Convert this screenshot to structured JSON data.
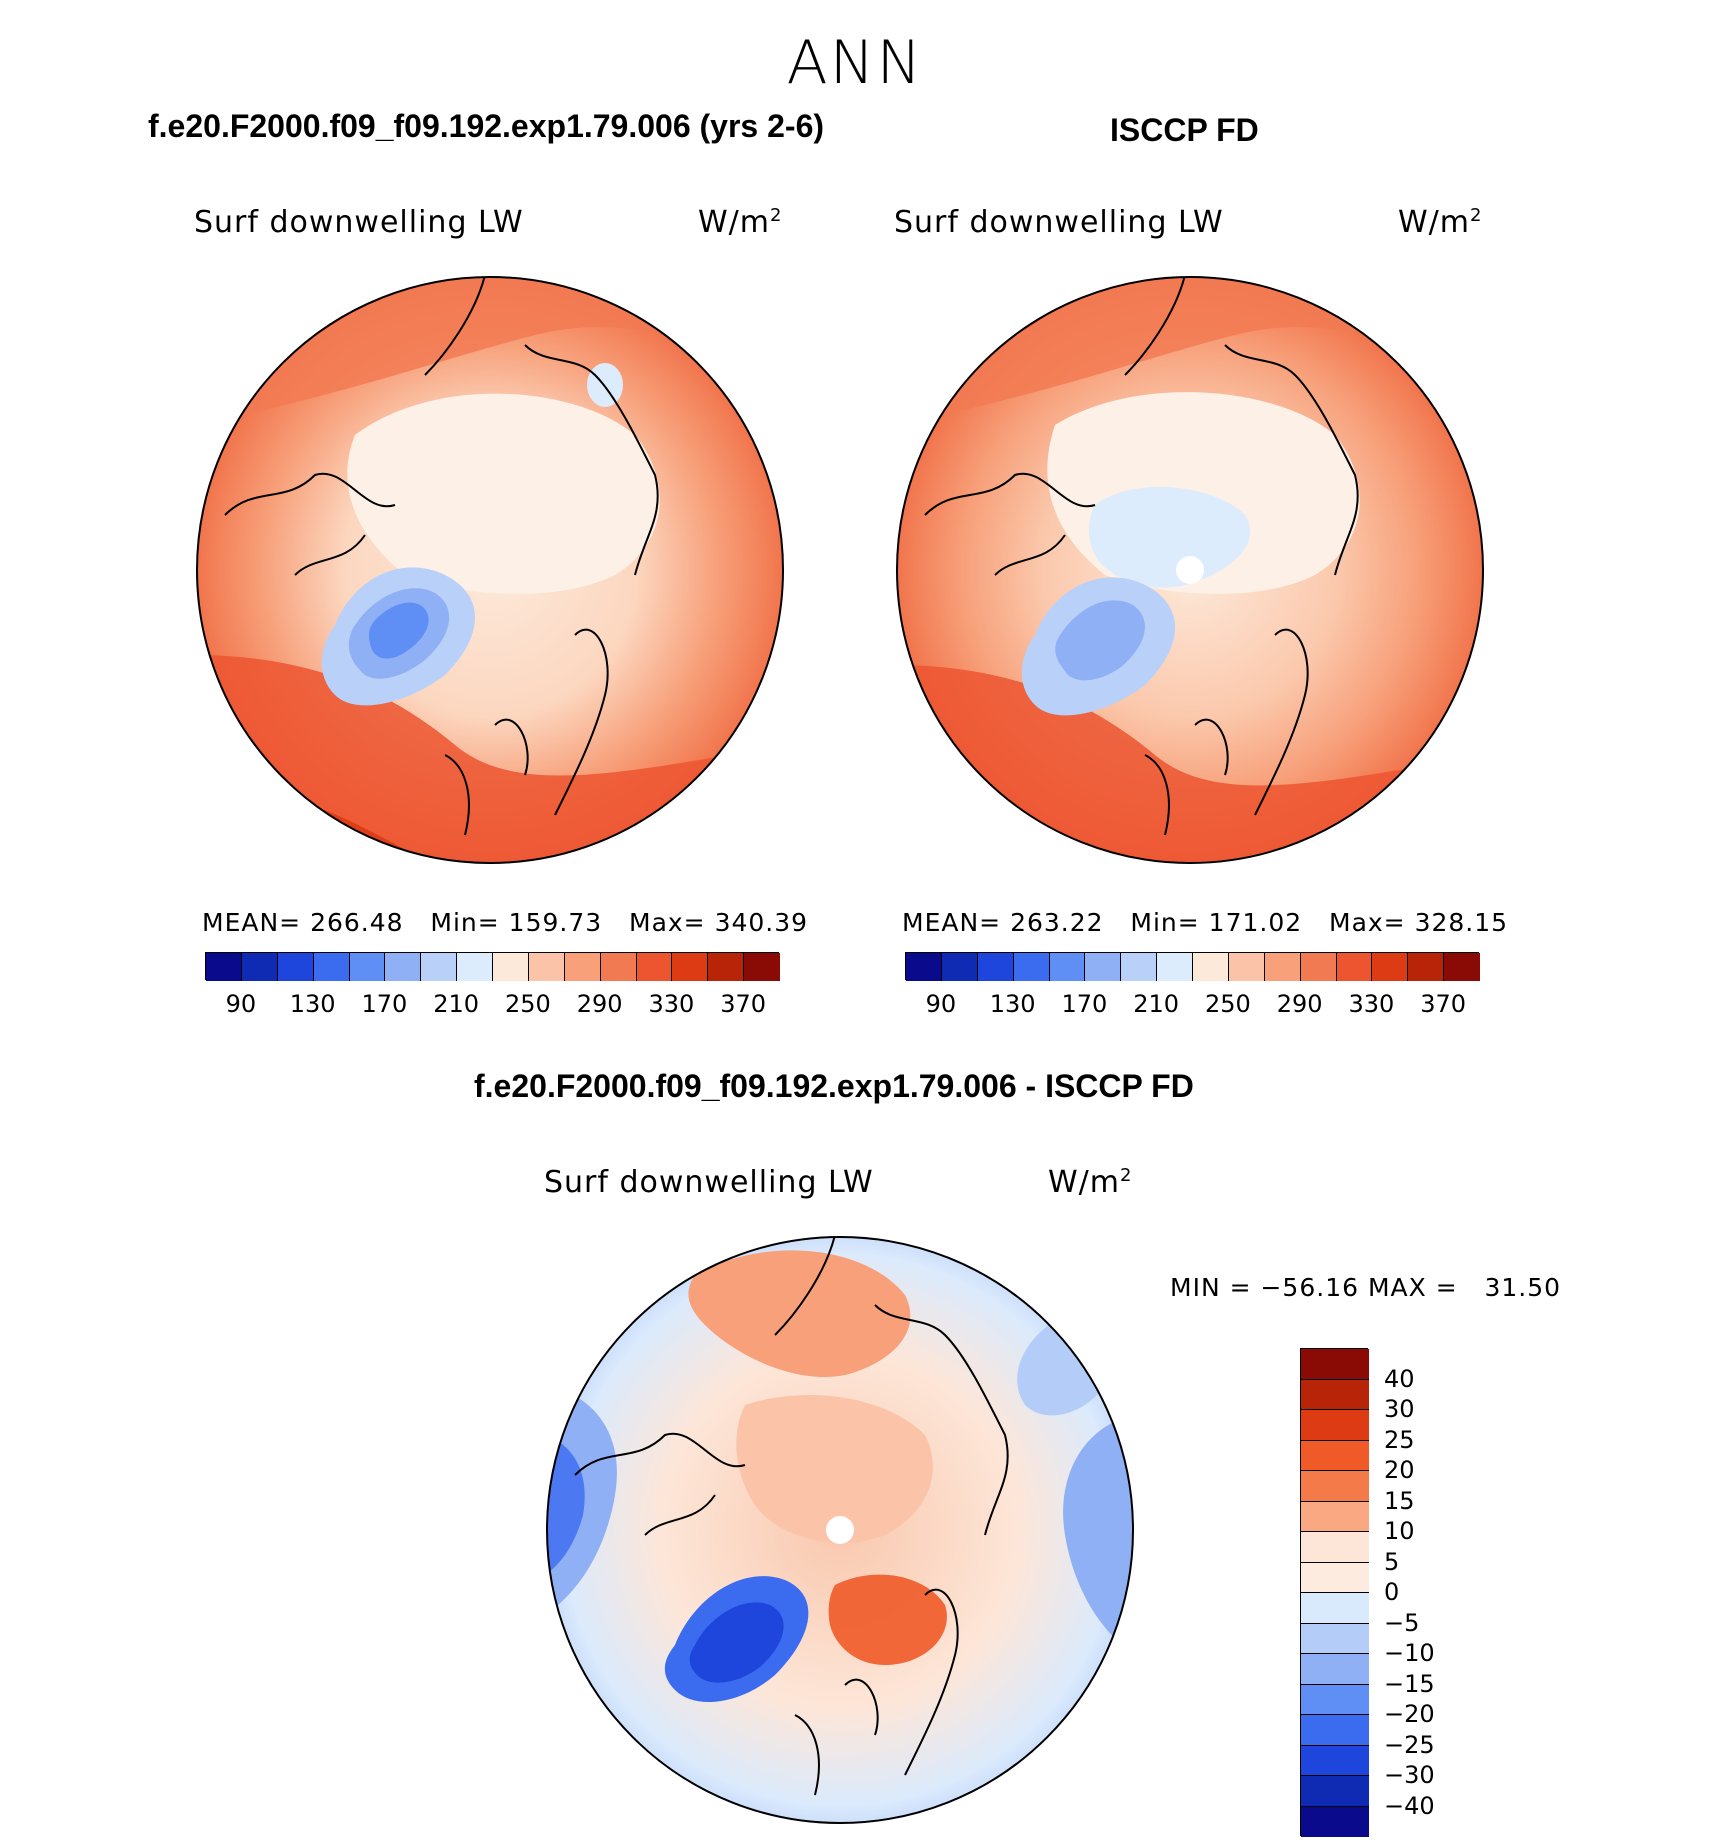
{
  "season": "ANN",
  "panels": {
    "model": {
      "title": "f.e20.F2000.f09_f09.192.exp1.79.006 (yrs 2-6)",
      "variable": "Surf downwelling LW",
      "units": "W/m",
      "units_exp": "2",
      "stats": {
        "mean_label": "MEAN=",
        "mean": "266.48",
        "min_label": "Min=",
        "min": "159.73",
        "max_label": "Max=",
        "max": "340.39"
      }
    },
    "obs": {
      "title": "ISCCP FD",
      "variable": "Surf downwelling LW",
      "units": "W/m",
      "units_exp": "2",
      "stats": {
        "mean_label": "MEAN=",
        "mean": "263.22",
        "min_label": "Min=",
        "min": "171.02",
        "max_label": "Max=",
        "max": "328.15"
      }
    },
    "diff": {
      "title": "f.e20.F2000.f09_f09.192.exp1.79.006 - ISCCP FD",
      "variable": "Surf downwelling LW",
      "units": "W/m",
      "units_exp": "2",
      "minmax": "MIN = −56.16 MAX =   31.50"
    }
  },
  "chart_data": [
    {
      "type": "heatmap",
      "title": "f.e20.F2000.f09_f09.192.exp1.79.006 (yrs 2-6)",
      "projection": "north polar stereographic",
      "variable": "Surf downwelling LW",
      "units": "W/m2",
      "mean": 266.48,
      "min": 159.73,
      "max": 340.39,
      "colorbar_levels": [
        90,
        130,
        170,
        210,
        250,
        290,
        330,
        370
      ],
      "colorbar_tick_labels": [
        "90",
        "130",
        "170",
        "210",
        "250",
        "290",
        "330",
        "370"
      ],
      "colorbar_colors": [
        "#0a0a8c",
        "#0f2bb4",
        "#1e46dc",
        "#3b6cf0",
        "#5f8ef4",
        "#8fb0f5",
        "#b9d0f8",
        "#dcecfc",
        "#fde9da",
        "#fbc4a8",
        "#f7a07a",
        "#f27a52",
        "#ec5530",
        "#dc3b14",
        "#b82408",
        "#8a0a06"
      ]
    },
    {
      "type": "heatmap",
      "title": "ISCCP FD",
      "projection": "north polar stereographic",
      "variable": "Surf downwelling LW",
      "units": "W/m2",
      "mean": 263.22,
      "min": 171.02,
      "max": 328.15,
      "colorbar_levels": [
        90,
        130,
        170,
        210,
        250,
        290,
        330,
        370
      ],
      "colorbar_tick_labels": [
        "90",
        "130",
        "170",
        "210",
        "250",
        "290",
        "330",
        "370"
      ],
      "colorbar_colors": [
        "#0a0a8c",
        "#0f2bb4",
        "#1e46dc",
        "#3b6cf0",
        "#5f8ef4",
        "#8fb0f5",
        "#b9d0f8",
        "#dcecfc",
        "#fde9da",
        "#fbc4a8",
        "#f7a07a",
        "#f27a52",
        "#ec5530",
        "#dc3b14",
        "#b82408",
        "#8a0a06"
      ]
    },
    {
      "type": "heatmap",
      "title": "f.e20.F2000.f09_f09.192.exp1.79.006 - ISCCP FD",
      "projection": "north polar stereographic",
      "variable": "Surf downwelling LW",
      "units": "W/m2",
      "min": -56.16,
      "max": 31.5,
      "colorbar_levels": [
        40,
        30,
        25,
        20,
        15,
        10,
        5,
        0,
        -5,
        -10,
        -15,
        -20,
        -25,
        -30,
        -40
      ],
      "colorbar_tick_labels": [
        "40",
        "30",
        "25",
        "20",
        "15",
        "10",
        "5",
        "0",
        "−5",
        "−10",
        "−15",
        "−20",
        "−25",
        "−30",
        "−40"
      ],
      "colorbar_colors": [
        "#8a0a06",
        "#b82408",
        "#dc3b14",
        "#f05a28",
        "#f47a4a",
        "#f9a882",
        "#fde6d8",
        "#fdebdf",
        "#d9eafc",
        "#b4cdf8",
        "#8fb0f5",
        "#5f8ef4",
        "#3b6cf0",
        "#1e46dc",
        "#0f2bb4",
        "#0a0a8c"
      ]
    }
  ]
}
